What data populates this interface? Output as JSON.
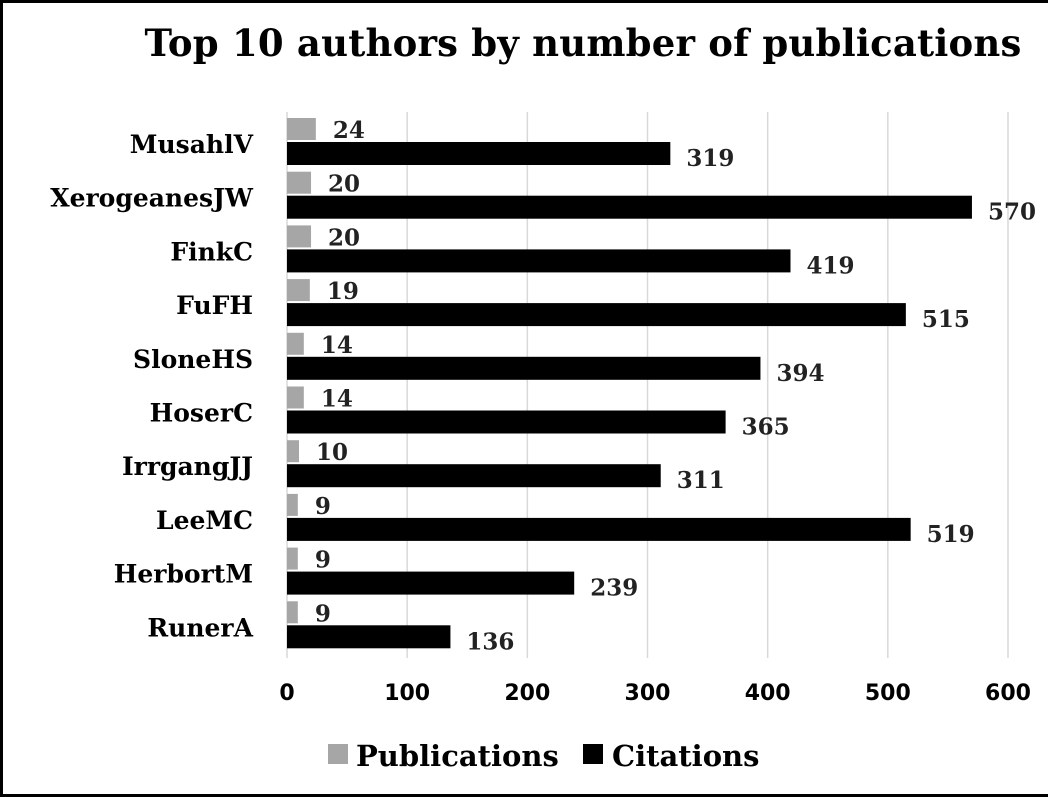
{
  "chart_data": {
    "type": "bar",
    "orientation": "horizontal",
    "title": "Top 10 authors by number of publications",
    "xlabel": "",
    "ylabel": "",
    "categories": [
      "MusahlV",
      "XerogeanesJW",
      "FinkC",
      "FuFH",
      "SloneHS",
      "HoserC",
      "IrrgangJJ",
      "LeeMC",
      "HerbortM",
      "RunerA"
    ],
    "series": [
      {
        "name": "Publications",
        "color": "#a6a6a6",
        "values": [
          24,
          20,
          20,
          19,
          14,
          14,
          10,
          9,
          9,
          9
        ]
      },
      {
        "name": "Citations",
        "color": "#000000",
        "values": [
          319,
          570,
          419,
          515,
          394,
          365,
          311,
          519,
          239,
          136
        ]
      }
    ],
    "xlim": [
      0,
      600
    ],
    "xticks": [
      0,
      100,
      200,
      300,
      400,
      500,
      600
    ],
    "grid": "vertical",
    "legend": "bottom",
    "data_labels": true
  }
}
